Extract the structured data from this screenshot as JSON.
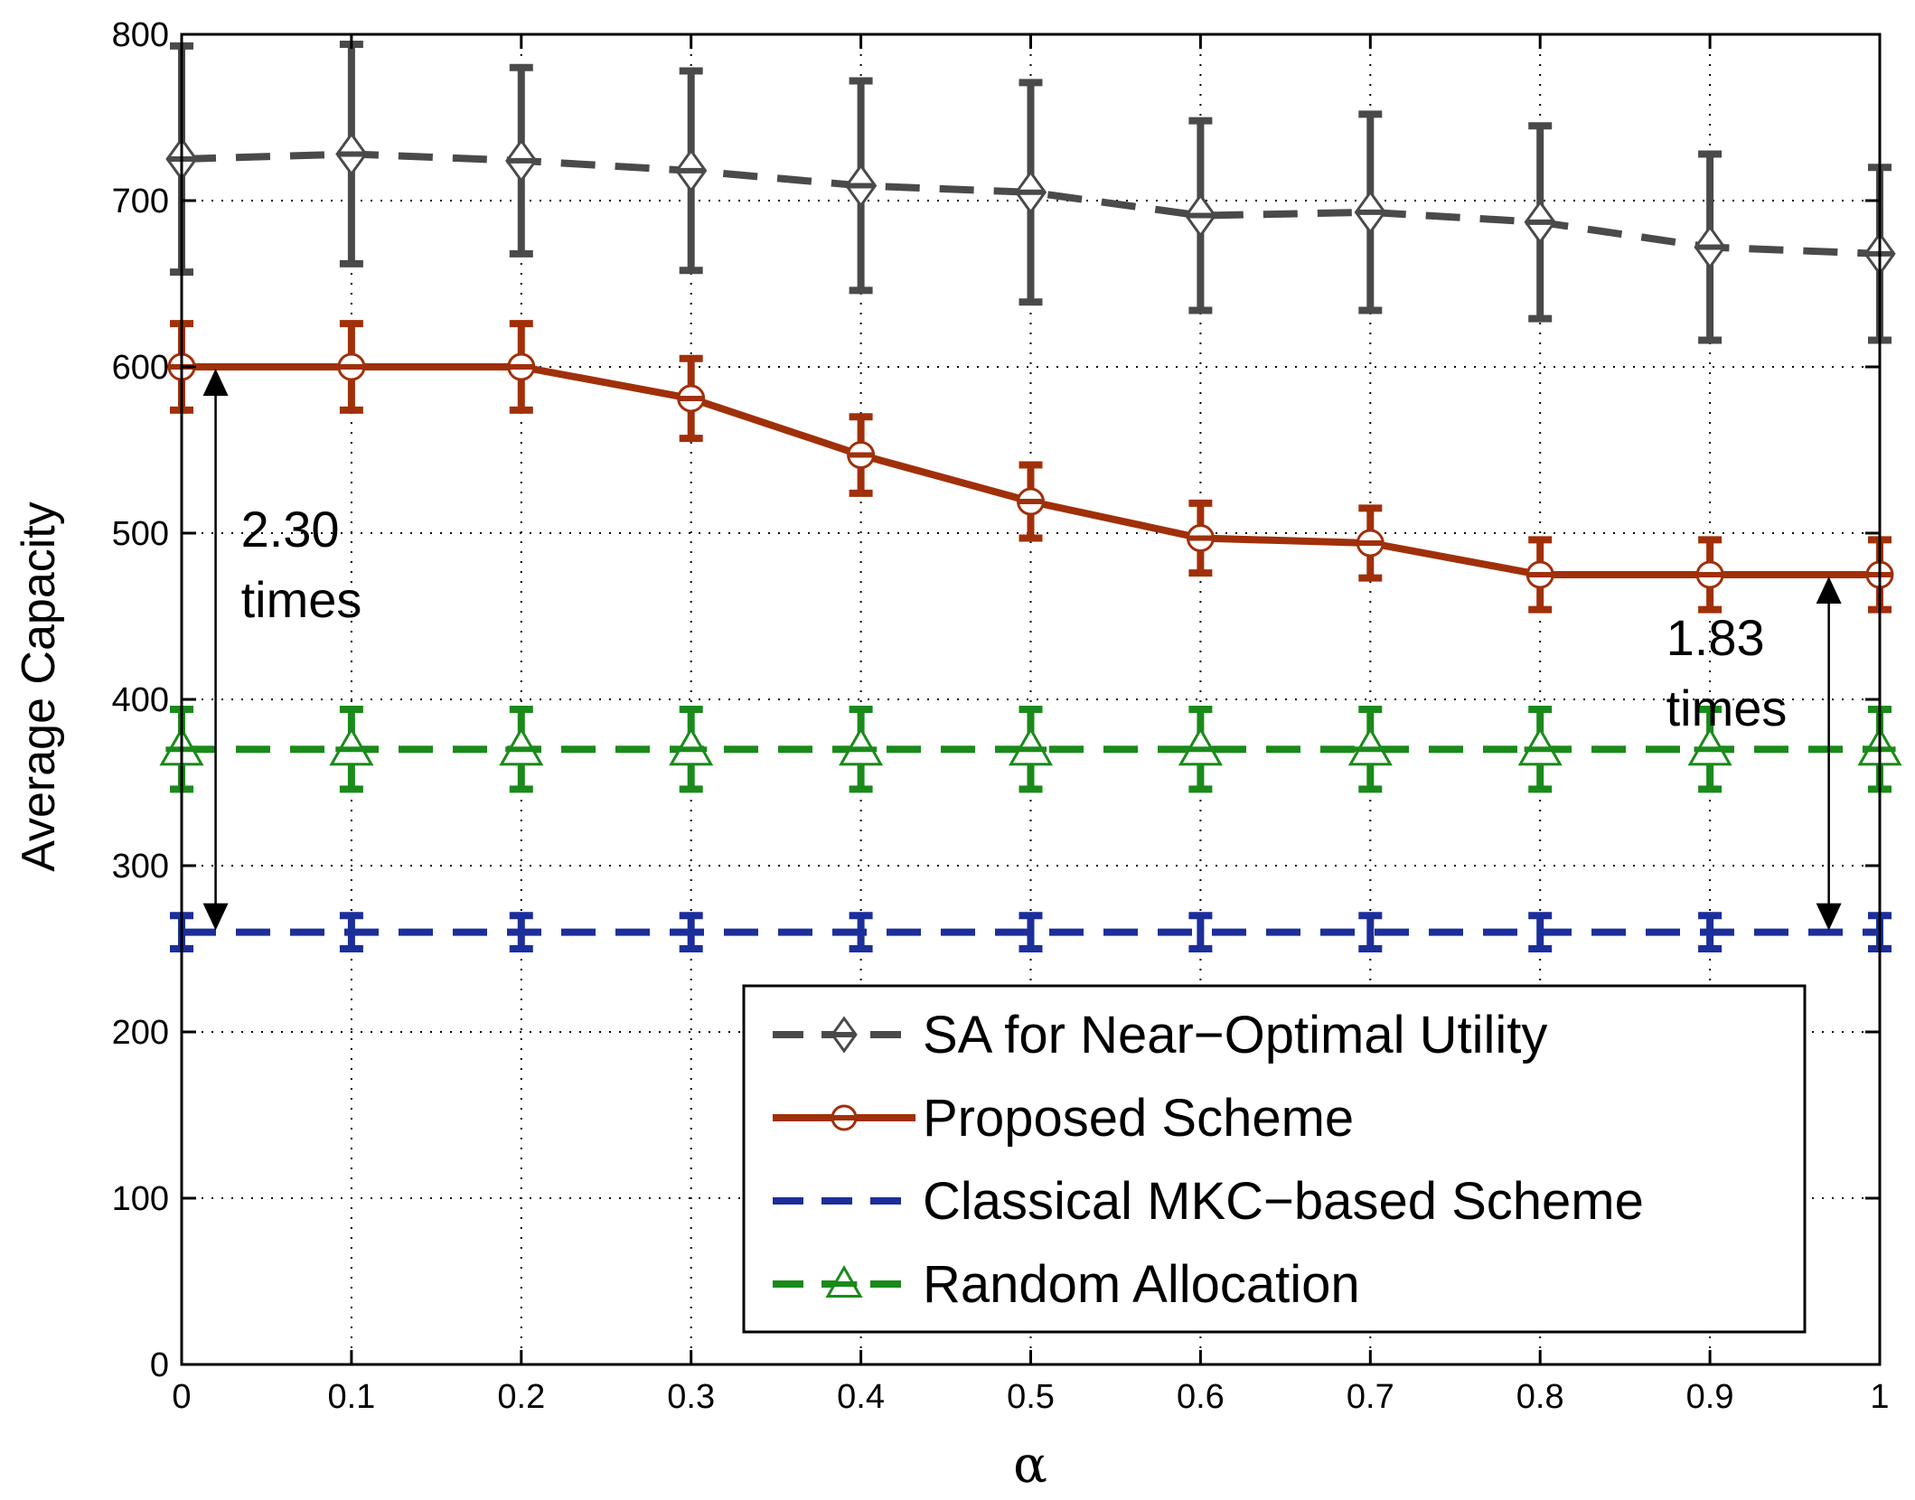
{
  "chart_data": {
    "type": "line",
    "title": "",
    "xlabel": "α",
    "ylabel": "Average Capacity",
    "xlim": [
      0,
      1
    ],
    "ylim": [
      0,
      800
    ],
    "x_ticks": [
      "0",
      "0.1",
      "0.2",
      "0.3",
      "0.4",
      "0.5",
      "0.6",
      "0.7",
      "0.8",
      "0.9",
      "1"
    ],
    "y_ticks": [
      "0",
      "100",
      "200",
      "300",
      "400",
      "500",
      "600",
      "700",
      "800"
    ],
    "grid": true,
    "legend_position": "bottom-right",
    "x": [
      0,
      0.1,
      0.2,
      0.3,
      0.4,
      0.5,
      0.6,
      0.7,
      0.8,
      0.9,
      1
    ],
    "series": [
      {
        "name": "SA for Near−Optimal Utility",
        "color": "#4a4a4a",
        "line": "dashed",
        "marker": "diamond",
        "values": [
          725,
          728,
          724,
          718,
          709,
          705,
          691,
          693,
          687,
          672,
          668
        ],
        "errors": [
          68,
          66,
          56,
          60,
          63,
          66,
          57,
          59,
          58,
          56,
          52
        ]
      },
      {
        "name": "Proposed Scheme",
        "color": "#a0300a",
        "line": "solid",
        "marker": "circle",
        "values": [
          600,
          600,
          600,
          581,
          547,
          519,
          497,
          494,
          475,
          475,
          475
        ],
        "errors": [
          26,
          26,
          26,
          24,
          23,
          22,
          21,
          21,
          21,
          21,
          21
        ]
      },
      {
        "name": "Classical MKC−based Scheme",
        "color": "#1c2e9a",
        "line": "dashed",
        "marker": "none",
        "values": [
          260,
          260,
          260,
          260,
          260,
          260,
          260,
          260,
          260,
          260,
          260
        ],
        "errors": [
          10,
          10,
          10,
          10,
          10,
          10,
          10,
          10,
          10,
          10,
          10
        ]
      },
      {
        "name": "Random Allocation",
        "color": "#1a8a1a",
        "line": "dashed",
        "marker": "triangle",
        "values": [
          370,
          370,
          370,
          370,
          370,
          370,
          370,
          370,
          370,
          370,
          370
        ],
        "errors": [
          24,
          24,
          24,
          24,
          24,
          24,
          24,
          24,
          24,
          24,
          24
        ]
      }
    ],
    "annotations": [
      {
        "lines": [
          "2.30",
          "times"
        ],
        "x_from": 0.02,
        "y_top": 600,
        "y_bottom": 260
      },
      {
        "lines": [
          "1.83",
          "times"
        ],
        "x_from": 0.97,
        "y_top": 475,
        "y_bottom": 260
      }
    ]
  }
}
